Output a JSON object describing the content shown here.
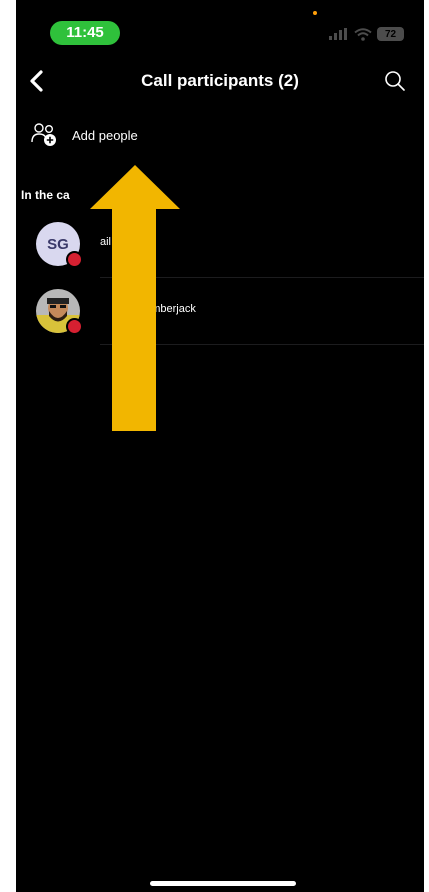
{
  "status_bar": {
    "time": "11:45",
    "battery": "72",
    "icons": [
      "cellular-icon",
      "wifi-icon",
      "battery-icon"
    ]
  },
  "header": {
    "title": "Call participants (2)",
    "back_icon": "chevron-left-icon",
    "search_icon": "search-icon"
  },
  "add_people": {
    "label": "Add people",
    "icon": "add-people-icon"
  },
  "section": {
    "title": "In the ca"
  },
  "participants": [
    {
      "initials": "SG",
      "name": "ail",
      "status": "busy"
    },
    {
      "name": "Lumberjack",
      "status": "busy"
    }
  ],
  "annotation": {
    "color": "#f2b600",
    "icon": "up-arrow-icon"
  },
  "colors": {
    "background": "#000000",
    "time_pill": "#2fc13b",
    "presence_busy": "#d52031"
  }
}
